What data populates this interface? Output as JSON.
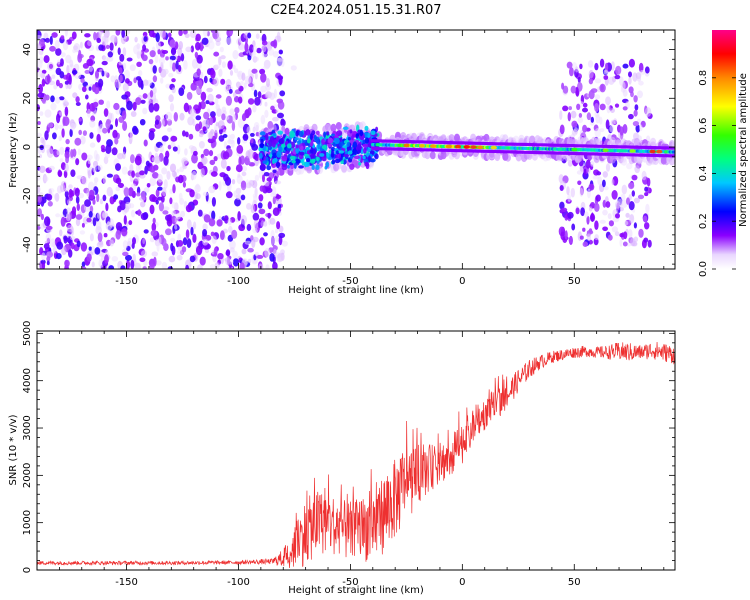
{
  "title": "C2E4.2024.051.15.31.R07",
  "chart_data": [
    {
      "type": "heatmap",
      "xlabel": "Height of straight line (km)",
      "ylabel": "Frequency (Hz)",
      "xlim": [
        -190,
        95
      ],
      "ylim": [
        -50,
        48
      ],
      "xticks": [
        -150,
        -100,
        -50,
        0,
        50
      ],
      "yticks": [
        -40,
        -20,
        0,
        20,
        40
      ],
      "colorbar": {
        "label": "Normalized spectral amplitude",
        "range": [
          0,
          1
        ],
        "ticks": [
          0.0,
          0.2,
          0.4,
          0.6,
          0.8
        ],
        "colormap": [
          "#ffffff",
          "#8a00ff",
          "#0000ff",
          "#00c8ff",
          "#00ff80",
          "#33ff00",
          "#ffff00",
          "#ff8800",
          "#ff0000",
          "#ff0088"
        ]
      },
      "regions": [
        {
          "x": [
            -190,
            -80
          ],
          "freq": [
            -50,
            48
          ],
          "amplitude": "noise 0.1-0.25"
        },
        {
          "x": [
            -90,
            -40
          ],
          "freq": [
            -12,
            8
          ],
          "amplitude": "signal 0.2-0.5"
        },
        {
          "x": [
            -40,
            95
          ],
          "freq": [
            -4,
            2
          ],
          "amplitude": "signal 0.4-0.9, centre drifting from +1 to -2 Hz"
        },
        {
          "x": [
            44,
            84
          ],
          "freq": [
            -40,
            35
          ],
          "amplitude": "noise 0.1-0.25"
        }
      ],
      "grid": false
    },
    {
      "type": "line",
      "xlabel": "Height of straight line (km)",
      "ylabel": "SNR (10 * v/v)",
      "xlim": [
        -190,
        95
      ],
      "ylim": [
        0,
        5050
      ],
      "xticks": [
        -150,
        -100,
        -50,
        0,
        50
      ],
      "yticks": [
        0,
        1000,
        2000,
        3000,
        4000,
        5000
      ],
      "series_color": "#ee3030",
      "x": [
        -190,
        -160,
        -130,
        -100,
        -85,
        -80,
        -75,
        -70,
        -65,
        -60,
        -55,
        -50,
        -45,
        -40,
        -35,
        -30,
        -25,
        -20,
        -15,
        -10,
        -5,
        0,
        5,
        10,
        15,
        20,
        25,
        30,
        35,
        40,
        45,
        50,
        55,
        60,
        65,
        70,
        75,
        80,
        85,
        90,
        95
      ],
      "y": [
        150,
        150,
        150,
        160,
        180,
        250,
        500,
        800,
        1000,
        1000,
        900,
        800,
        850,
        950,
        1200,
        1500,
        1800,
        2000,
        2150,
        2250,
        2400,
        2700,
        3000,
        3300,
        3500,
        3700,
        4000,
        4250,
        4400,
        4500,
        4550,
        4600,
        4620,
        4600,
        4600,
        4620,
        4600,
        4600,
        4650,
        4600,
        4550
      ],
      "noise_amplitude": [
        40,
        40,
        40,
        40,
        60,
        200,
        500,
        700,
        700,
        650,
        600,
        650,
        700,
        750,
        850,
        850,
        800,
        600,
        500,
        450,
        450,
        450,
        400,
        350,
        350,
        300,
        250,
        200,
        150,
        130,
        120,
        120,
        120,
        120,
        150,
        200,
        200,
        150,
        200,
        200,
        200
      ],
      "grid": false
    }
  ]
}
